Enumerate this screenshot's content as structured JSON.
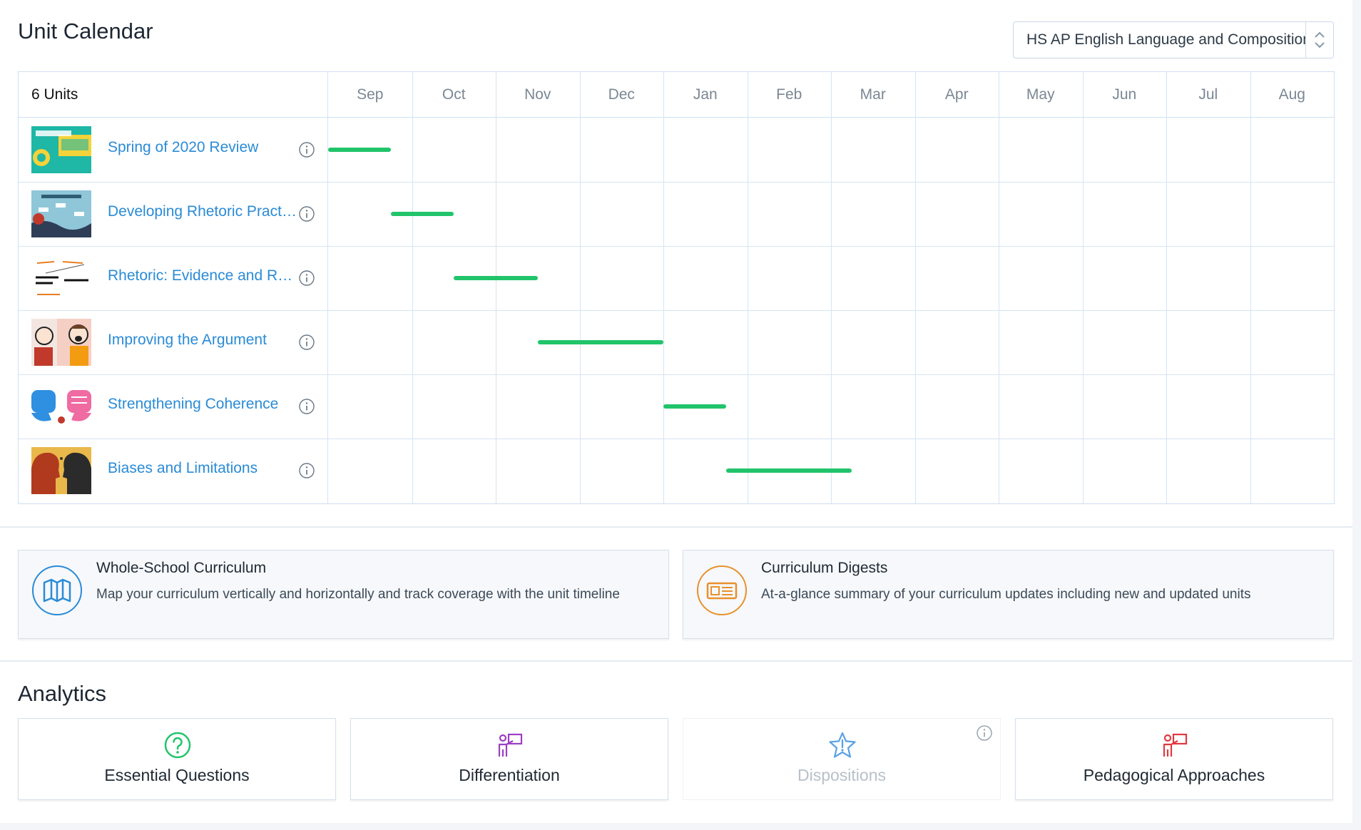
{
  "calendar": {
    "title": "Unit Calendar",
    "course_select": {
      "value": "HS AP English Language and Composition"
    },
    "units_count": "6 Units",
    "months": [
      "Sep",
      "Oct",
      "Nov",
      "Dec",
      "Jan",
      "Feb",
      "Mar",
      "Apr",
      "May",
      "Jun",
      "Jul",
      "Aug"
    ],
    "units": [
      {
        "title": "Spring of 2020 Review",
        "thumbnail": "how-to-use-rhetoric-thumbnail",
        "start_month": 0.0,
        "end_month": 0.75
      },
      {
        "title": "Developing Rhetoric Practices",
        "thumbnail": "rhetorical-situation-thumbnail",
        "start_month": 0.75,
        "end_month": 1.5
      },
      {
        "title": "Rhetoric: Evidence and Reasoning",
        "thumbnail": "evidence-reasoning-thumbnail",
        "start_month": 1.5,
        "end_month": 2.5
      },
      {
        "title": "Improving the Argument",
        "thumbnail": "cartoon-argument-thumbnail",
        "start_month": 2.5,
        "end_month": 4.0
      },
      {
        "title": "Strengthening Coherence",
        "thumbnail": "speech-bubbles-thumbnail",
        "start_month": 4.0,
        "end_month": 4.75
      },
      {
        "title": "Biases and Limitations",
        "thumbnail": "silhouette-heads-thumbnail",
        "start_month": 4.75,
        "end_month": 6.25
      }
    ],
    "bar_color": "#21c46a",
    "link_color": "#2a8bd6"
  },
  "features": [
    {
      "title": "Whole-School Curriculum",
      "description": "Map your curriculum vertically and horizontally and track coverage with the unit timeline",
      "icon": "map-icon",
      "icon_color": "#2a8bd6"
    },
    {
      "title": "Curriculum Digests",
      "description": "At-a-glance summary of your curriculum updates including new and updated units",
      "icon": "newspaper-icon",
      "icon_color": "#e8912d"
    }
  ],
  "analytics": {
    "title": "Analytics",
    "cards": [
      {
        "label": "Essential Questions",
        "icon": "question-circle-icon",
        "icon_color": "#21c46a",
        "enabled": true
      },
      {
        "label": "Differentiation",
        "icon": "teacher-board-icon",
        "icon_color": "#9b3fc4",
        "enabled": true
      },
      {
        "label": "Dispositions",
        "icon": "star-exclamation-icon",
        "icon_color": "#5aa2e6",
        "enabled": false
      },
      {
        "label": "Pedagogical Approaches",
        "icon": "teacher-board-icon",
        "icon_color": "#e3383f",
        "enabled": true
      }
    ]
  }
}
